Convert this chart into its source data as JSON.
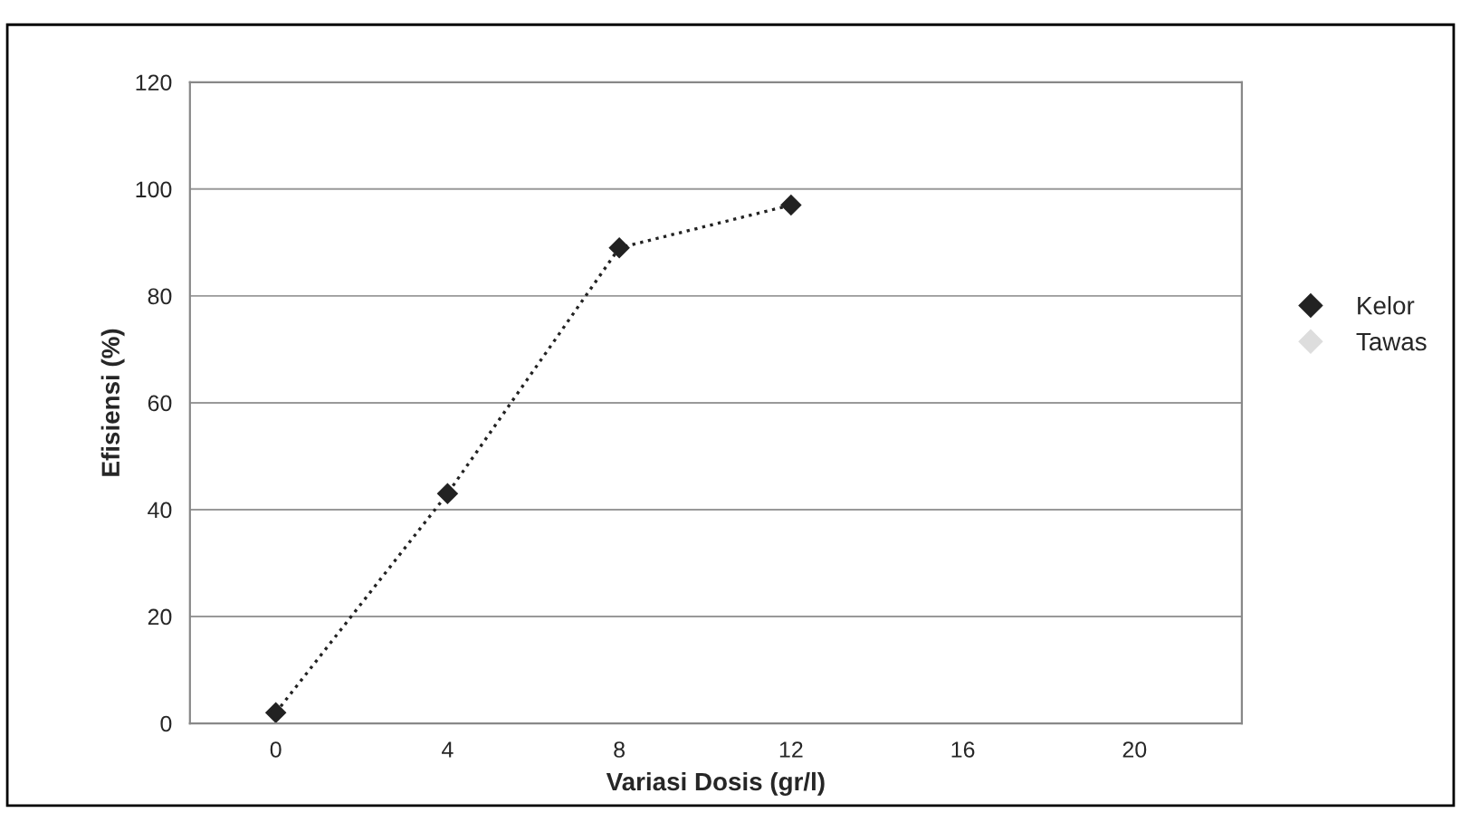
{
  "chart_data": {
    "type": "line",
    "xlabel": "Variasi Dosis (gr/l)",
    "ylabel": "Efisiensi (%)",
    "x": [
      0,
      4,
      8,
      12
    ],
    "series": [
      {
        "name": "Kelor",
        "color": "#222222",
        "values": [
          2,
          43,
          89,
          97
        ]
      },
      {
        "name": "Tawas",
        "color": "#dddddd",
        "values": [
          null,
          null,
          null,
          null
        ]
      }
    ],
    "xlim": [
      -2,
      22.5
    ],
    "xticks": [
      0,
      4,
      8,
      12,
      16,
      20
    ],
    "ylim": [
      0,
      120
    ],
    "yticks": [
      0,
      20,
      40,
      60,
      80,
      100,
      120
    ],
    "grid": "y",
    "legend": "right",
    "marker": "diamond",
    "line_style": "dotted"
  }
}
